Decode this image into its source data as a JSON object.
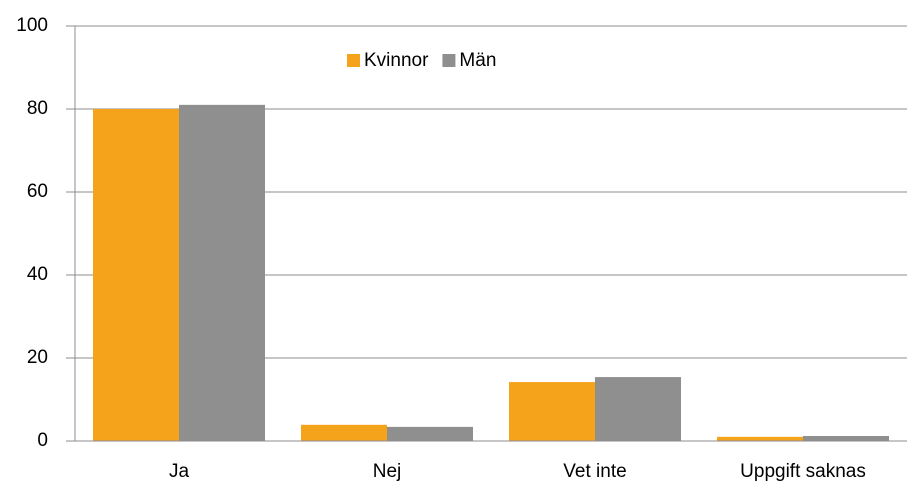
{
  "chart_data": {
    "type": "bar",
    "categories": [
      "Ja",
      "Nej",
      "Vet inte",
      "Uppgift saknas"
    ],
    "series": [
      {
        "name": "Kvinnor",
        "color": "#f5a31b",
        "values": [
          80,
          3.9,
          14.2,
          1.0
        ]
      },
      {
        "name": "Män",
        "color": "#8f8f8f",
        "values": [
          81,
          3.4,
          15.4,
          1.2
        ]
      }
    ],
    "ylim": [
      0,
      100
    ],
    "yticks": [
      0,
      20,
      40,
      60,
      80,
      100
    ],
    "grid": true,
    "legend": "top"
  }
}
